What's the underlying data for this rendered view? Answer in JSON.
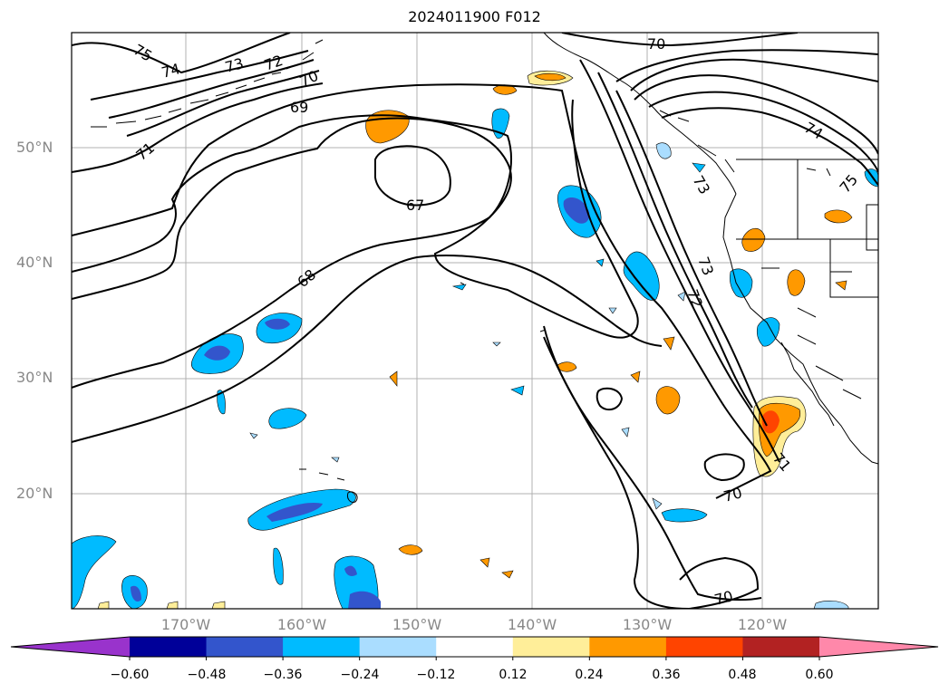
{
  "title": "2024011900 F012",
  "lat_labels": [
    "50°N",
    "40°N",
    "30°N",
    "20°N"
  ],
  "lon_labels": [
    "170°W",
    "160°W",
    "150°W",
    "140°W",
    "130°W",
    "120°W"
  ],
  "contour_labels": [
    "75",
    "74",
    "73",
    "72",
    "70",
    "69",
    "71",
    "67",
    "68",
    "70",
    "74",
    "75",
    "73",
    "72",
    "73",
    "71",
    "70",
    "70"
  ],
  "colorbar": {
    "ticks": [
      "−0.60",
      "−0.48",
      "−0.36",
      "−0.24",
      "−0.12",
      "0.12",
      "0.24",
      "0.36",
      "0.48",
      "0.60"
    ],
    "colors": [
      "#9933cc",
      "#000099",
      "#3355cc",
      "#00bbff",
      "#aaddff",
      "#ffffff",
      "#ffee99",
      "#ff9900",
      "#ff4400",
      "#b22222",
      "#ff88aa"
    ]
  },
  "colors": {
    "neg_light": "#aaddff",
    "neg_mid": "#00bbff",
    "neg_dark": "#3355cc",
    "pos_light": "#ffee99",
    "pos_mid": "#ff9900",
    "pos_dark": "#ff4400",
    "grid": "#b0b0b0",
    "contour": "#000000"
  }
}
